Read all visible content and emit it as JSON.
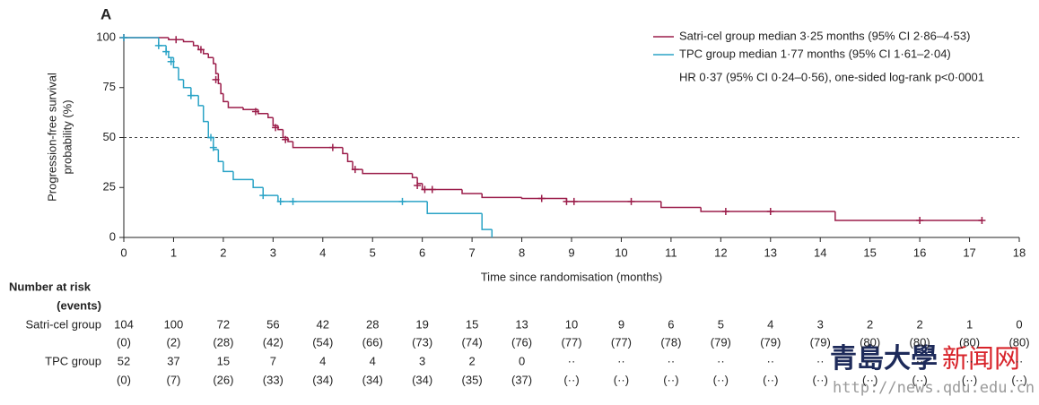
{
  "chart_data": {
    "type": "step",
    "panel_label": "A",
    "xlabel": "Time since randomisation (months)",
    "ylabel": [
      "Progression-free survival",
      "probability (%)"
    ],
    "xlim": [
      0,
      18
    ],
    "ylim": [
      0,
      100
    ],
    "xticks": [
      0,
      1,
      2,
      3,
      4,
      5,
      6,
      7,
      8,
      9,
      10,
      11,
      12,
      13,
      14,
      15,
      16,
      17,
      18
    ],
    "yticks": [
      0,
      25,
      50,
      75,
      100
    ],
    "reference_line": 50,
    "annotation": "HR 0·37 (95% CI 0·24–0·56), one-sided log-rank p<0·0001",
    "series": [
      {
        "name": "Satri-cel group median 3·25 months (95% CI 2·86–4·53)",
        "color": "#9b1d4a",
        "x": [
          0,
          0.9,
          1.2,
          1.4,
          1.5,
          1.6,
          1.7,
          1.8,
          1.85,
          1.9,
          1.95,
          2.0,
          2.1,
          2.4,
          2.7,
          2.9,
          3.0,
          3.1,
          3.2,
          3.3,
          3.4,
          4.4,
          4.5,
          4.6,
          4.8,
          5.8,
          5.9,
          6.0,
          6.8,
          7.2,
          8.0,
          8.9,
          10.8,
          11.6,
          14.3,
          17.25
        ],
        "values": [
          100,
          99,
          98,
          96,
          94,
          92,
          90,
          87,
          82,
          77,
          72,
          68,
          65,
          64,
          62,
          60,
          56,
          54,
          50,
          48,
          45,
          42,
          38,
          34,
          32,
          30,
          27,
          24,
          22,
          20,
          19.5,
          18,
          15,
          13,
          8.5,
          8.5
        ],
        "censor_x": [
          0,
          1.05,
          1.55,
          1.85,
          2.65,
          3.05,
          3.25,
          4.2,
          4.65,
          5.9,
          6.05,
          6.2,
          8.4,
          8.9,
          9.05,
          10.2,
          12.1,
          13.0,
          16.0,
          17.25
        ],
        "censor_y": [
          100,
          99,
          94,
          79,
          63,
          55,
          49,
          45,
          34,
          26,
          24,
          24,
          19.5,
          18,
          18,
          18,
          13,
          13,
          8.5,
          8.5
        ]
      },
      {
        "name": "TPC group median 1·77 months (95% CI 1·61–2·04)",
        "color": "#2aa3c6",
        "x": [
          0,
          0.7,
          0.85,
          0.9,
          1.0,
          1.1,
          1.2,
          1.35,
          1.5,
          1.6,
          1.7,
          1.8,
          1.9,
          2.0,
          2.2,
          2.6,
          2.8,
          3.1,
          6.1,
          7.2,
          7.4
        ],
        "values": [
          100,
          96,
          93,
          90,
          85,
          79,
          75,
          71,
          66,
          58,
          50,
          44,
          38,
          33,
          29,
          25,
          21,
          18,
          12,
          4,
          0
        ],
        "censor_x": [
          0,
          0.7,
          0.85,
          0.95,
          1.35,
          1.75,
          1.8,
          2.8,
          3.15,
          3.4,
          5.6
        ],
        "censor_y": [
          100,
          96,
          93,
          88,
          71,
          50,
          45,
          21,
          18,
          18,
          18
        ]
      }
    ],
    "risk_table": {
      "title": [
        "Number at risk",
        "(events)"
      ],
      "rows": [
        {
          "label": "Satri-cel group",
          "at_risk": [
            104,
            100,
            72,
            56,
            42,
            28,
            19,
            15,
            13,
            10,
            9,
            6,
            5,
            4,
            3,
            2,
            2,
            1,
            0
          ],
          "events": [
            "(0)",
            "(2)",
            "(28)",
            "(42)",
            "(54)",
            "(66)",
            "(73)",
            "(74)",
            "(76)",
            "(77)",
            "(77)",
            "(78)",
            "(79)",
            "(79)",
            "(79)",
            "(80)",
            "(80)",
            "(80)",
            "(80)"
          ]
        },
        {
          "label": "TPC group",
          "at_risk": [
            52,
            37,
            15,
            7,
            4,
            4,
            3,
            2,
            0,
            "··",
            "··",
            "··",
            "··",
            "··",
            "··",
            "··",
            "··",
            "··",
            "··"
          ],
          "events": [
            "(0)",
            "(7)",
            "(26)",
            "(33)",
            "(34)",
            "(34)",
            "(34)",
            "(35)",
            "(37)",
            "(··)",
            "(··)",
            "(··)",
            "(··)",
            "(··)",
            "(··)",
            "(··)",
            "(··)",
            "(··)",
            "(··)"
          ]
        }
      ]
    }
  },
  "watermark": {
    "logo": "青島大學",
    "name": "新闻网",
    "url": "http://news.qdu.edu.cn"
  }
}
